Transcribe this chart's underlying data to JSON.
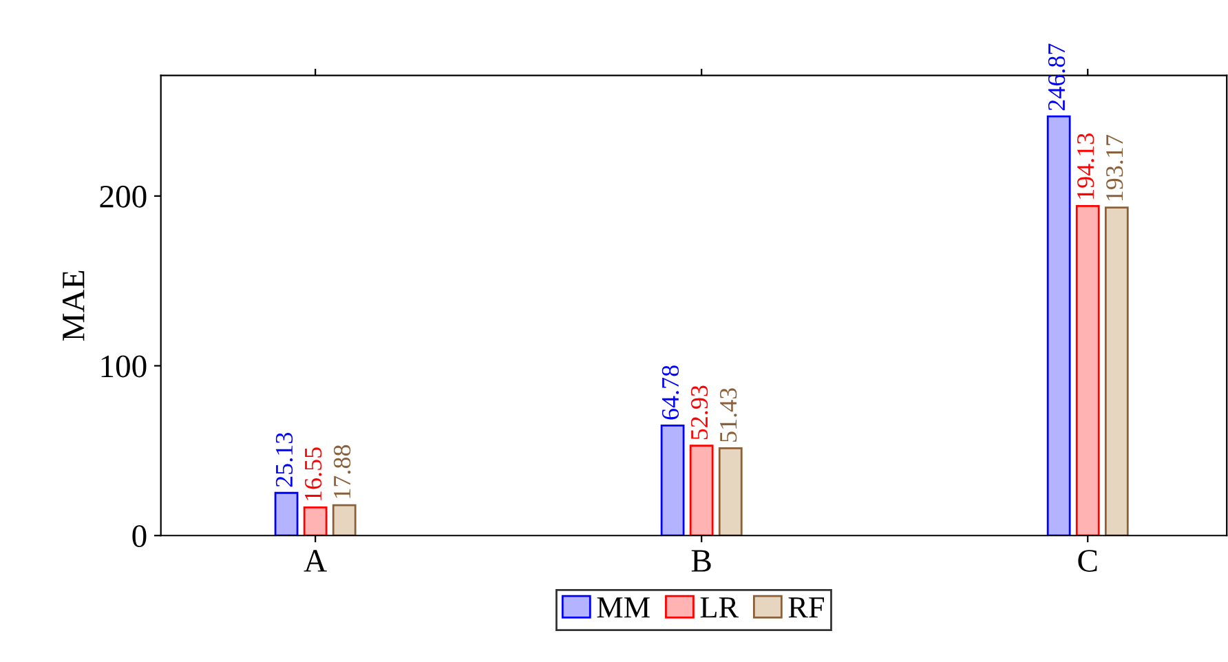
{
  "chart_data": {
    "type": "bar",
    "ylabel": "MAE",
    "categories": [
      "A",
      "B",
      "C"
    ],
    "series": [
      {
        "name": "MM",
        "color": "#b3b3ff",
        "values": [
          25.13,
          64.78,
          246.87
        ]
      },
      {
        "name": "LR",
        "color": "#ffb3b3",
        "values": [
          16.55,
          52.93,
          194.13
        ]
      },
      {
        "name": "RF",
        "color": "#e6d6c0",
        "values": [
          17.88,
          51.43,
          193.17
        ]
      }
    ],
    "ylim": [
      0,
      271
    ],
    "yticks": [
      0,
      100,
      200
    ],
    "data_labels": true,
    "legend": "bottom",
    "grid": false
  }
}
